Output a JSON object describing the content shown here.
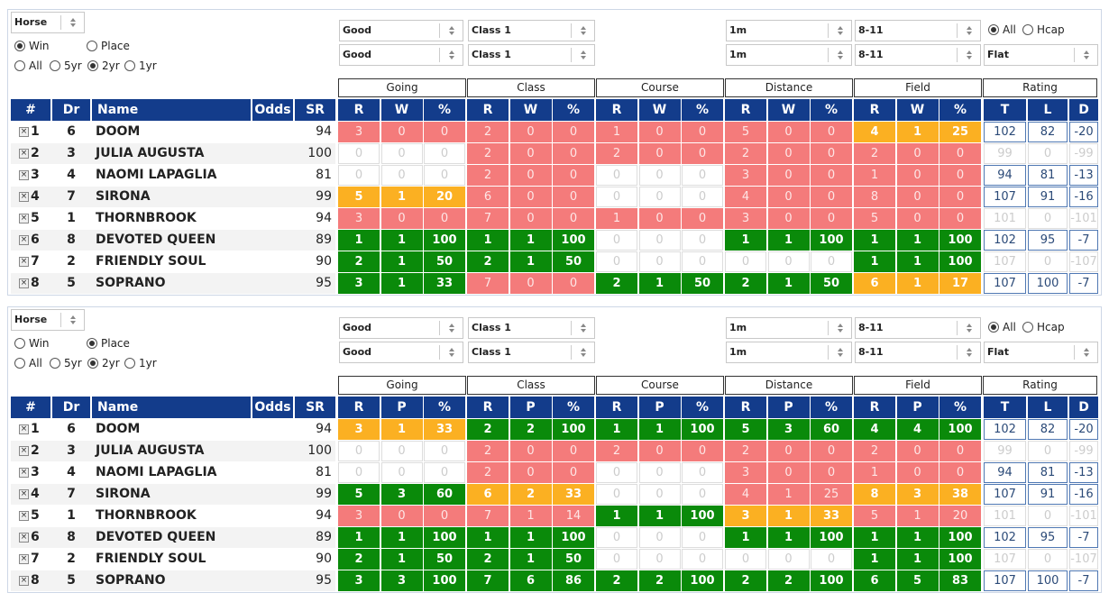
{
  "panels": [
    {
      "sort_select": "Horse",
      "result": {
        "options": [
          "Win",
          "Place"
        ],
        "selected": 0
      },
      "period": {
        "options": [
          "All",
          "5yr",
          "2yr",
          "1yr"
        ],
        "selected": 2
      },
      "filters": {
        "going": [
          "Good",
          "Good"
        ],
        "class": [
          "Class 1",
          "Class 1"
        ],
        "distance": [
          "1m",
          "1m"
        ],
        "field": [
          "8-11",
          "8-11"
        ],
        "race_type": "Flat"
      },
      "race": {
        "options": [
          "All",
          "Hcap"
        ],
        "selected": 0
      },
      "columns": [
        "#",
        "Dr",
        "Name",
        "Odds",
        "SR"
      ],
      "group_headers": [
        "Going",
        "Class",
        "Course",
        "Distance",
        "Field",
        "Rating"
      ],
      "stat_columns": [
        "R",
        "W",
        "%"
      ],
      "rating_columns": [
        "T",
        "L",
        "D"
      ],
      "rows": [
        {
          "no": 1,
          "dr": 6,
          "name": "DOOM",
          "sr": 94,
          "stats": [
            [
              3,
              0,
              0
            ],
            [
              2,
              0,
              0
            ],
            [
              1,
              0,
              0
            ],
            [
              5,
              0,
              0
            ],
            [
              4,
              1,
              25
            ]
          ],
          "status": [
            "red",
            "red",
            "red",
            "red",
            "orange"
          ],
          "rating": [
            102,
            82,
            -20
          ]
        },
        {
          "no": 2,
          "dr": 3,
          "name": "JULIA AUGUSTA",
          "sr": 100,
          "stats": [
            [
              0,
              0,
              0
            ],
            [
              2,
              0,
              0
            ],
            [
              2,
              0,
              0
            ],
            [
              2,
              0,
              0
            ],
            [
              2,
              0,
              0
            ]
          ],
          "status": [
            "blank",
            "red",
            "red",
            "red",
            "red"
          ],
          "rating": [
            99,
            0,
            -99
          ]
        },
        {
          "no": 3,
          "dr": 4,
          "name": "NAOMI LAPAGLIA",
          "sr": 81,
          "stats": [
            [
              0,
              0,
              0
            ],
            [
              2,
              0,
              0
            ],
            [
              0,
              0,
              0
            ],
            [
              3,
              0,
              0
            ],
            [
              1,
              0,
              0
            ]
          ],
          "status": [
            "blank",
            "red",
            "blank",
            "red",
            "red"
          ],
          "rating": [
            94,
            81,
            -13
          ]
        },
        {
          "no": 4,
          "dr": 7,
          "name": "SIRONA",
          "sr": 99,
          "stats": [
            [
              5,
              1,
              20
            ],
            [
              6,
              0,
              0
            ],
            [
              0,
              0,
              0
            ],
            [
              4,
              0,
              0
            ],
            [
              8,
              0,
              0
            ]
          ],
          "status": [
            "orange",
            "red",
            "blank",
            "red",
            "red"
          ],
          "rating": [
            107,
            91,
            -16
          ]
        },
        {
          "no": 5,
          "dr": 1,
          "name": "THORNBROOK",
          "sr": 94,
          "stats": [
            [
              3,
              0,
              0
            ],
            [
              7,
              0,
              0
            ],
            [
              1,
              0,
              0
            ],
            [
              3,
              0,
              0
            ],
            [
              5,
              0,
              0
            ]
          ],
          "status": [
            "red",
            "red",
            "red",
            "red",
            "red"
          ],
          "rating": [
            101,
            0,
            -101
          ]
        },
        {
          "no": 6,
          "dr": 8,
          "name": "DEVOTED QUEEN",
          "sr": 89,
          "stats": [
            [
              1,
              1,
              100
            ],
            [
              1,
              1,
              100
            ],
            [
              0,
              0,
              0
            ],
            [
              1,
              1,
              100
            ],
            [
              1,
              1,
              100
            ]
          ],
          "status": [
            "green",
            "green",
            "blank",
            "green",
            "green"
          ],
          "rating": [
            102,
            95,
            -7
          ]
        },
        {
          "no": 7,
          "dr": 2,
          "name": "FRIENDLY SOUL",
          "sr": 90,
          "stats": [
            [
              2,
              1,
              50
            ],
            [
              2,
              1,
              50
            ],
            [
              0,
              0,
              0
            ],
            [
              0,
              0,
              0
            ],
            [
              1,
              1,
              100
            ]
          ],
          "status": [
            "green",
            "green",
            "blank",
            "blank",
            "green"
          ],
          "rating": [
            107,
            0,
            -107
          ]
        },
        {
          "no": 8,
          "dr": 5,
          "name": "SOPRANO",
          "sr": 95,
          "stats": [
            [
              3,
              1,
              33
            ],
            [
              7,
              0,
              0
            ],
            [
              2,
              1,
              50
            ],
            [
              2,
              1,
              50
            ],
            [
              6,
              1,
              17
            ]
          ],
          "status": [
            "green",
            "red",
            "green",
            "green",
            "orange"
          ],
          "rating": [
            107,
            100,
            -7
          ]
        }
      ]
    },
    {
      "sort_select": "Horse",
      "result": {
        "options": [
          "Win",
          "Place"
        ],
        "selected": 1
      },
      "period": {
        "options": [
          "All",
          "5yr",
          "2yr",
          "1yr"
        ],
        "selected": 2
      },
      "filters": {
        "going": [
          "Good",
          "Good"
        ],
        "class": [
          "Class 1",
          "Class 1"
        ],
        "distance": [
          "1m",
          "1m"
        ],
        "field": [
          "8-11",
          "8-11"
        ],
        "race_type": "Flat"
      },
      "race": {
        "options": [
          "All",
          "Hcap"
        ],
        "selected": 0
      },
      "columns": [
        "#",
        "Dr",
        "Name",
        "Odds",
        "SR"
      ],
      "group_headers": [
        "Going",
        "Class",
        "Course",
        "Distance",
        "Field",
        "Rating"
      ],
      "stat_columns": [
        "R",
        "P",
        "%"
      ],
      "rating_columns": [
        "T",
        "L",
        "D"
      ],
      "rows": [
        {
          "no": 1,
          "dr": 6,
          "name": "DOOM",
          "sr": 94,
          "stats": [
            [
              3,
              1,
              33
            ],
            [
              2,
              2,
              100
            ],
            [
              1,
              1,
              100
            ],
            [
              5,
              3,
              60
            ],
            [
              4,
              4,
              100
            ]
          ],
          "status": [
            "orange",
            "green",
            "green",
            "green",
            "green"
          ],
          "rating": [
            102,
            82,
            -20
          ]
        },
        {
          "no": 2,
          "dr": 3,
          "name": "JULIA AUGUSTA",
          "sr": 100,
          "stats": [
            [
              0,
              0,
              0
            ],
            [
              2,
              0,
              0
            ],
            [
              2,
              0,
              0
            ],
            [
              2,
              0,
              0
            ],
            [
              2,
              0,
              0
            ]
          ],
          "status": [
            "blank",
            "red",
            "red",
            "red",
            "red"
          ],
          "rating": [
            99,
            0,
            -99
          ]
        },
        {
          "no": 3,
          "dr": 4,
          "name": "NAOMI LAPAGLIA",
          "sr": 81,
          "stats": [
            [
              0,
              0,
              0
            ],
            [
              2,
              0,
              0
            ],
            [
              0,
              0,
              0
            ],
            [
              3,
              0,
              0
            ],
            [
              1,
              0,
              0
            ]
          ],
          "status": [
            "blank",
            "red",
            "blank",
            "red",
            "red"
          ],
          "rating": [
            94,
            81,
            -13
          ]
        },
        {
          "no": 4,
          "dr": 7,
          "name": "SIRONA",
          "sr": 99,
          "stats": [
            [
              5,
              3,
              60
            ],
            [
              6,
              2,
              33
            ],
            [
              0,
              0,
              0
            ],
            [
              4,
              1,
              25
            ],
            [
              8,
              3,
              38
            ]
          ],
          "status": [
            "green",
            "orange",
            "blank",
            "red",
            "orange"
          ],
          "rating": [
            107,
            91,
            -16
          ]
        },
        {
          "no": 5,
          "dr": 1,
          "name": "THORNBROOK",
          "sr": 94,
          "stats": [
            [
              3,
              0,
              0
            ],
            [
              7,
              1,
              14
            ],
            [
              1,
              1,
              100
            ],
            [
              3,
              1,
              33
            ],
            [
              5,
              1,
              20
            ]
          ],
          "status": [
            "red",
            "red",
            "green",
            "orange",
            "red"
          ],
          "rating": [
            101,
            0,
            -101
          ]
        },
        {
          "no": 6,
          "dr": 8,
          "name": "DEVOTED QUEEN",
          "sr": 89,
          "stats": [
            [
              1,
              1,
              100
            ],
            [
              1,
              1,
              100
            ],
            [
              0,
              0,
              0
            ],
            [
              1,
              1,
              100
            ],
            [
              1,
              1,
              100
            ]
          ],
          "status": [
            "green",
            "green",
            "blank",
            "green",
            "green"
          ],
          "rating": [
            102,
            95,
            -7
          ]
        },
        {
          "no": 7,
          "dr": 2,
          "name": "FRIENDLY SOUL",
          "sr": 90,
          "stats": [
            [
              2,
              1,
              50
            ],
            [
              2,
              1,
              50
            ],
            [
              0,
              0,
              0
            ],
            [
              0,
              0,
              0
            ],
            [
              1,
              1,
              100
            ]
          ],
          "status": [
            "green",
            "green",
            "blank",
            "blank",
            "green"
          ],
          "rating": [
            107,
            0,
            -107
          ]
        },
        {
          "no": 8,
          "dr": 5,
          "name": "SOPRANO",
          "sr": 95,
          "stats": [
            [
              3,
              3,
              100
            ],
            [
              7,
              6,
              86
            ],
            [
              2,
              2,
              100
            ],
            [
              2,
              2,
              100
            ],
            [
              6,
              5,
              83
            ]
          ],
          "status": [
            "green",
            "green",
            "green",
            "green",
            "green"
          ],
          "rating": [
            107,
            100,
            -7
          ]
        }
      ]
    }
  ]
}
